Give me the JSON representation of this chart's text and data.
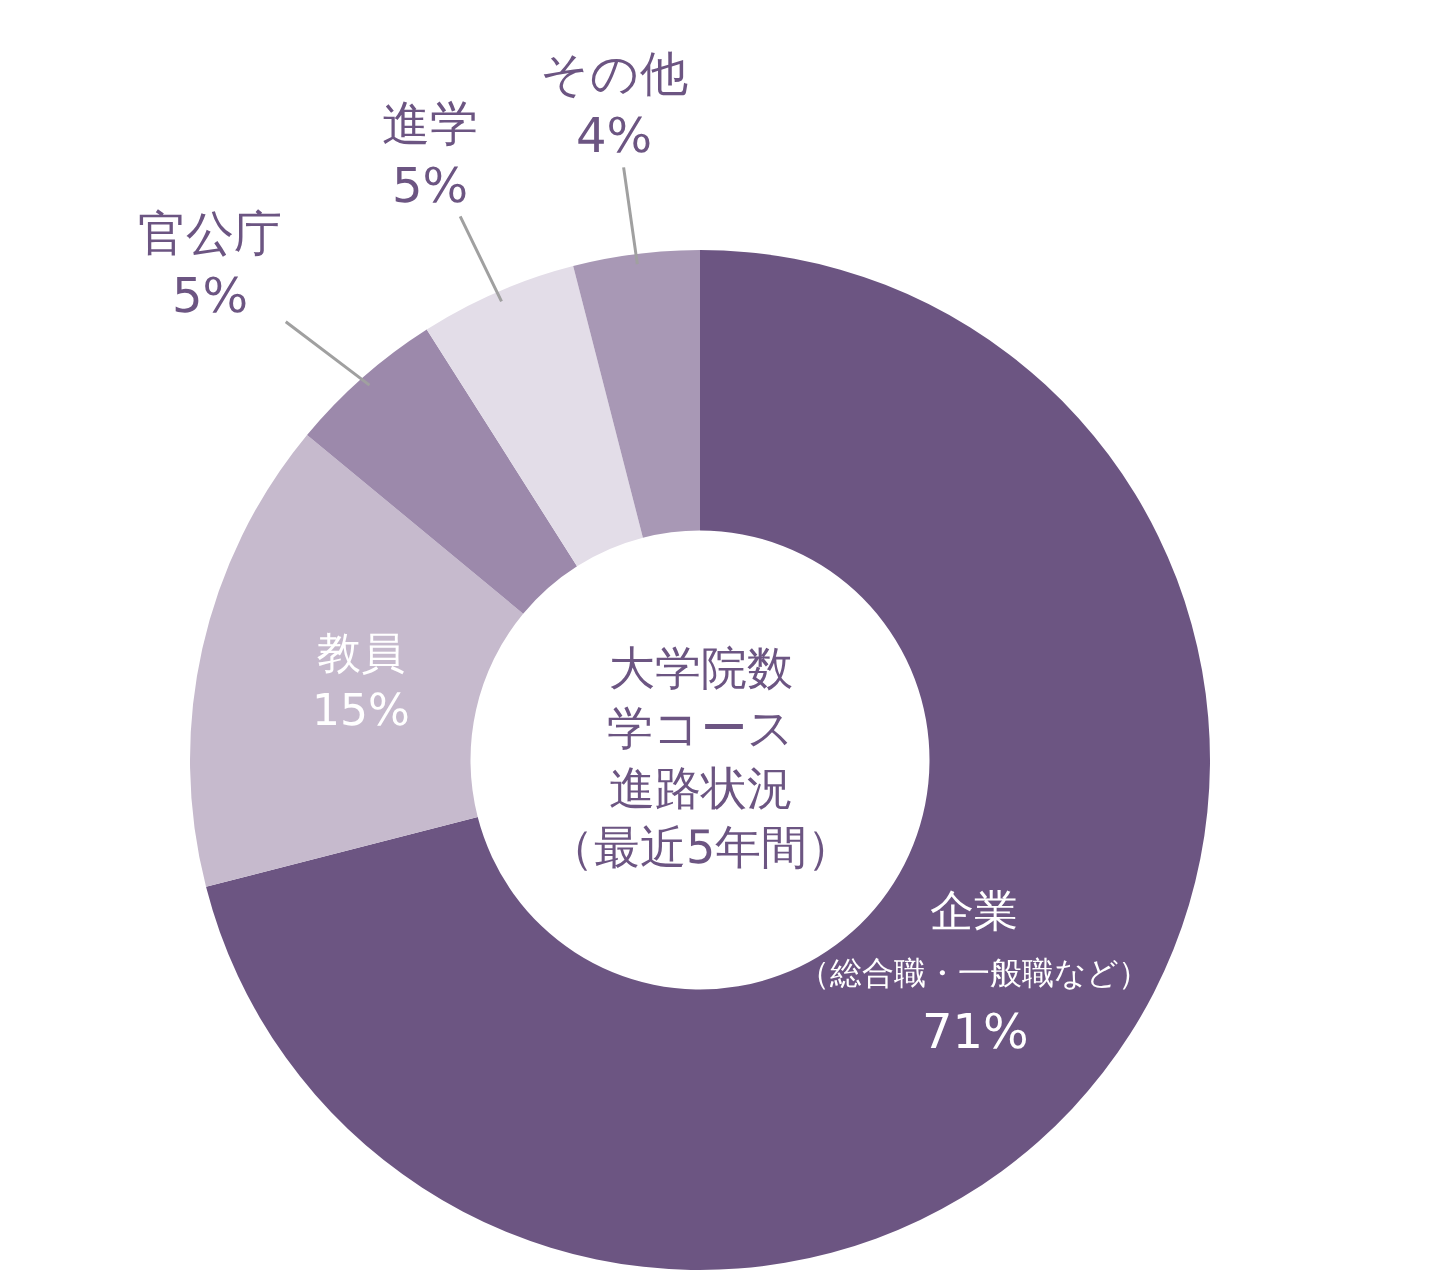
{
  "chart_data": {
    "type": "donut",
    "title": "大学院数学コース進路状況",
    "subtitle": "（最近5年間）",
    "categories": [
      "企業",
      "教員",
      "官公庁",
      "進学",
      "その他"
    ],
    "annotations": [
      "（総合職・一般職など）"
    ],
    "values": [
      71,
      15,
      5,
      5,
      4
    ],
    "value_labels": [
      "71%",
      "15%",
      "5%",
      "5%",
      "4%"
    ],
    "colors": [
      "#6c5582",
      "#c6bacd",
      "#9c89ab",
      "#e3dde8",
      "#a898b5"
    ],
    "legend": false
  }
}
